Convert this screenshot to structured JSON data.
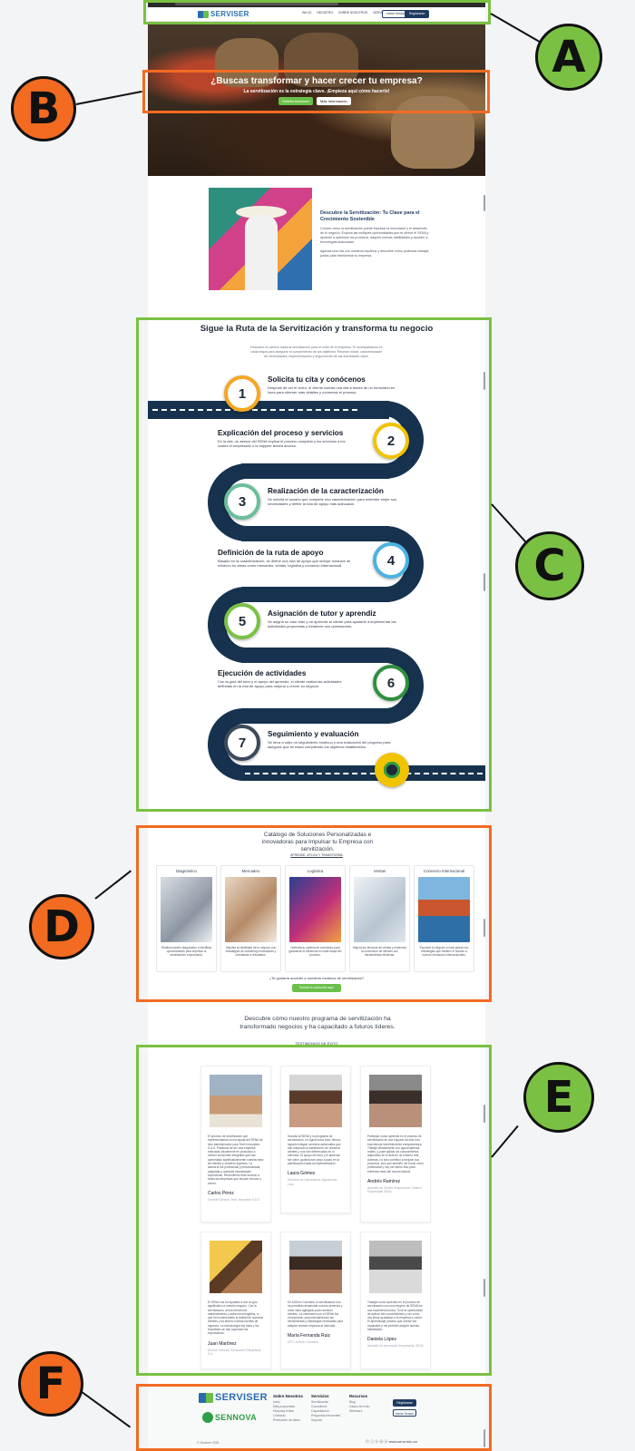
{
  "nav": {
    "brand": "SERVISER",
    "links": [
      "INICIO",
      "REGISTRO",
      "SOBRE NOSOTROS",
      "SERVICIOS",
      "RECURSOS"
    ],
    "login": "Iniciar Sesión",
    "register": "Registrarse"
  },
  "hero": {
    "title": "¿Buscas transformar y hacer crecer tu empresa?",
    "subtitle": "La servitización es la estrategia clave. ¡Empieza aquí cómo hacerlo!",
    "cta_primary": "Solicita Asesoría",
    "cta_secondary": "Más Información"
  },
  "intro": {
    "title": "Descubre la Servitización: Tu Clave para el Crecimiento Sostenible",
    "p1": "Conoce cómo la servitización puede impulsar la innovación y el desarrollo de tu negocio. Explora las múltiples oportunidades que te ofrece el SENA y aprende a optimizar tus procesos, adquirir nuevas habilidades y acceder a tecnologías avanzadas.",
    "p2": "Agenda una cita con nuestros expertos y descubre cómo podemos trabajar juntos para transformar tu empresa."
  },
  "route": {
    "title": "Sigue la Ruta de la Servitización y transforma tu negocio",
    "subtitle": "Descubre el camino hacia la servitización para el éxito de tu empresa. Te acompañamos en cada etapa para asegurar el cumplimiento de tus objetivos: Reunión inicial, caracterización de necesidades, implementación y seguimiento de las actividades clave.",
    "steps": [
      {
        "num": "1",
        "title": "Solicita tu cita y conócenos",
        "desc": "Después de ver el video, el cliente solicita una cita a través de un formulario en línea para obtener más detalles y comenzar el proceso."
      },
      {
        "num": "2",
        "title": "Explicación del proceso y servicios",
        "desc": "En la cita, un asesor del SENA explica el proceso completo y los servicios a los cuales el empresario o la mipyme tendrá acceso."
      },
      {
        "num": "3",
        "title": "Realización de la caracterización",
        "desc": "Se solicita al usuario que complete una caracterización para entender mejor sus necesidades y definir la ruta de apoyo más adecuada."
      },
      {
        "num": "4",
        "title": "Definición de la ruta de apoyo",
        "desc": "Basado en la caracterización, se define una ruta de apoyo que incluye módulos de refuerzo en áreas como mercadeo, ventas, logística y comercio internacional."
      },
      {
        "num": "5",
        "title": "Asignación de tutor y aprendiz",
        "desc": "Se asigna un tutor líder y un aprendiz al cliente para ayudarle a implementar las actividades propuestas y fortalecer sus operaciones."
      },
      {
        "num": "6",
        "title": "Ejecución de actividades",
        "desc": "Con la guía del tutor y el apoyo del aprendiz, el cliente realiza las actividades definidas en la ruta de apoyo para mejorar y crecer su negocio."
      },
      {
        "num": "7",
        "title": "Seguimiento y evaluación",
        "desc": "Se lleva a cabo un seguimiento continuo y una evaluación del progreso para asegurar que se están cumpliendo los objetivos establecidos."
      }
    ]
  },
  "catalog": {
    "title": "Catálogo de Soluciones Personalizadas e innovadoras para Impulsar tu Empresa con servitización.",
    "link": "APRENDE, APLICA Y TRANSFORMA",
    "cards": [
      {
        "label": "Diagnóstico",
        "text": "Realiza nuestro diagnóstico e identifica oportunidades para impulsar la servitización empresarial."
      },
      {
        "label": "Mercadeo",
        "text": "Impulsa la visibilidad de tu negocio con estrategias de marketing innovadoras y orientadas a resultados."
      },
      {
        "label": "Logística",
        "text": "Optimiza tu cadena de suministro para garantizar la eficiencia en cada etapa del proceso."
      },
      {
        "label": "Ventas",
        "text": "Mejora tus técnicas de ventas y maximiza la conversión de clientes con herramientas efectivas."
      },
      {
        "label": "Comercio Internacional",
        "text": "Expande tu negocio a nivel global con estrategias que faciliten el acceso a nuevos mercados internacionales."
      }
    ],
    "question": "¿Te gustaría acceder a nuestros módulos de servitización?",
    "button": "Solicita tu asesoría aquí"
  },
  "testimonials": {
    "title": "Descubre cómo nuestro programa de servitización ha transformado negocios y ha capacitado a futuros líderes.",
    "link": "TESTIMONIOS DE ÉXITO",
    "items": [
      {
        "name": "Carlos Pérez",
        "role": "Gerente General, Tech Innovators S.A.S",
        "quote": "El proceso de servitización que implementamos con la ayuda del SENA ha sido transformador para Tech Innovators S.A.S. Pasamos de ser una empresa enfocada únicamente en productos a ofrecer soluciones integrales que han aumentado significativamente nuestra base de clientes y nuestros ingresos. La asesoría fue profesional y personalizada, adaptada a nuestras necesidades específicas. Recomiendo este servicio a todas las empresas que buscan innovar y crecer."
      },
      {
        "name": "Laura Gómez",
        "role": "Directora de Operaciones, AgroInnova Ltda.",
        "quote": "Gracias al SENA y su programa de servitización, en AgroInnova Ltda. hemos logrado integrar servicios adicionales que han mejorado la satisfacción de nuestros clientes y nos han diferenciado en el mercado. El apoyo del tutor y el aprendiz fue clave, guiándonos paso a paso en la planificación hasta la implementación."
      },
      {
        "name": "Andrés Ramírez",
        "role": "Aprendiz de Gestión Empresarial, Gestión Empresarial SENA",
        "quote": "Participar como aprendiz en el proceso de servitización de una mipyme ha sido una experiencia increíblemente enriquecedora. Trabajé directamente con agroempresas reales, y pude aplicar los conocimientos adquiridos en el aula en un entorno real. Además, no solo contribuí a mejorar sus procesos, sino que también me formé como profesional y hoy me siento listo para enfrentar retos del mundo laboral."
      },
      {
        "name": "Juan Martínez",
        "role": "Director General, Soluciones Energéticas S.A.",
        "quote": "El SENA nos ha ayudado a dar un giro significativo a nuestro negocio. Con la servitización, ahora ofrecemos mantenimiento y asesoría energética, lo que ha incrementado la lealtad de nuestros clientes y ha abierto nuevas fuentes de ingresos. La metodología fue clara y los resultados se han superado las expectativas."
      },
      {
        "name": "María Fernanda Ruiz",
        "role": "CEO, ArtTech Colombia",
        "quote": "En ArtTech Colombia, la servitización nos ha permitido desarrollar nuevos servicios y crear valor agregado para nuestros clientes. La orientación por el SENA fue excepcional, proporcionándonos las herramientas y estrategias necesarias para adaptar nuestra empresa al mercado."
      },
      {
        "name": "Daniela López",
        "role": "Aprendiz de Innovación Empresarial, SENA",
        "quote": "Trabajar como aprendiz en el proceso de servitización con una mipyme de SENA fue una experiencia única. Tuve la oportunidad de aplicar mis conocimientos y ver cómo mis ideas ayudaban a la empresa a crecer. El aprendizaje práctico que obtuve fue invaluable y me permitió adquirir nuevas habilidades."
      }
    ]
  },
  "footer": {
    "brand": "SERVISER",
    "brand2": "SENNOVA",
    "cols": [
      {
        "title": "Sobre Nosotros",
        "items": [
          "Inicio",
          "Más propuestas",
          "Historias éxitos",
          "Contacto",
          "Protección de datos"
        ]
      },
      {
        "title": "Servicios",
        "items": [
          "Servitización",
          "Consultoría",
          "Capacitación",
          "Preguntas frecuentes",
          "Soporte"
        ]
      },
      {
        "title": "Recursos",
        "items": [
          "Blog",
          "Casos de éxito",
          "Webinars"
        ]
      }
    ],
    "register": "Registrarse",
    "login": "Iniciar Sesión",
    "copyright": "© Serviser 2024",
    "social": "ⓕ ⓘ ⓨ ⓦ ⓔ",
    "url": "www.sena.edu.co"
  },
  "annotations": [
    "A",
    "B",
    "C",
    "D",
    "E",
    "F"
  ],
  "colors": {
    "green": "#7ac143",
    "orange": "#f26b21",
    "navy": "#16324f"
  }
}
